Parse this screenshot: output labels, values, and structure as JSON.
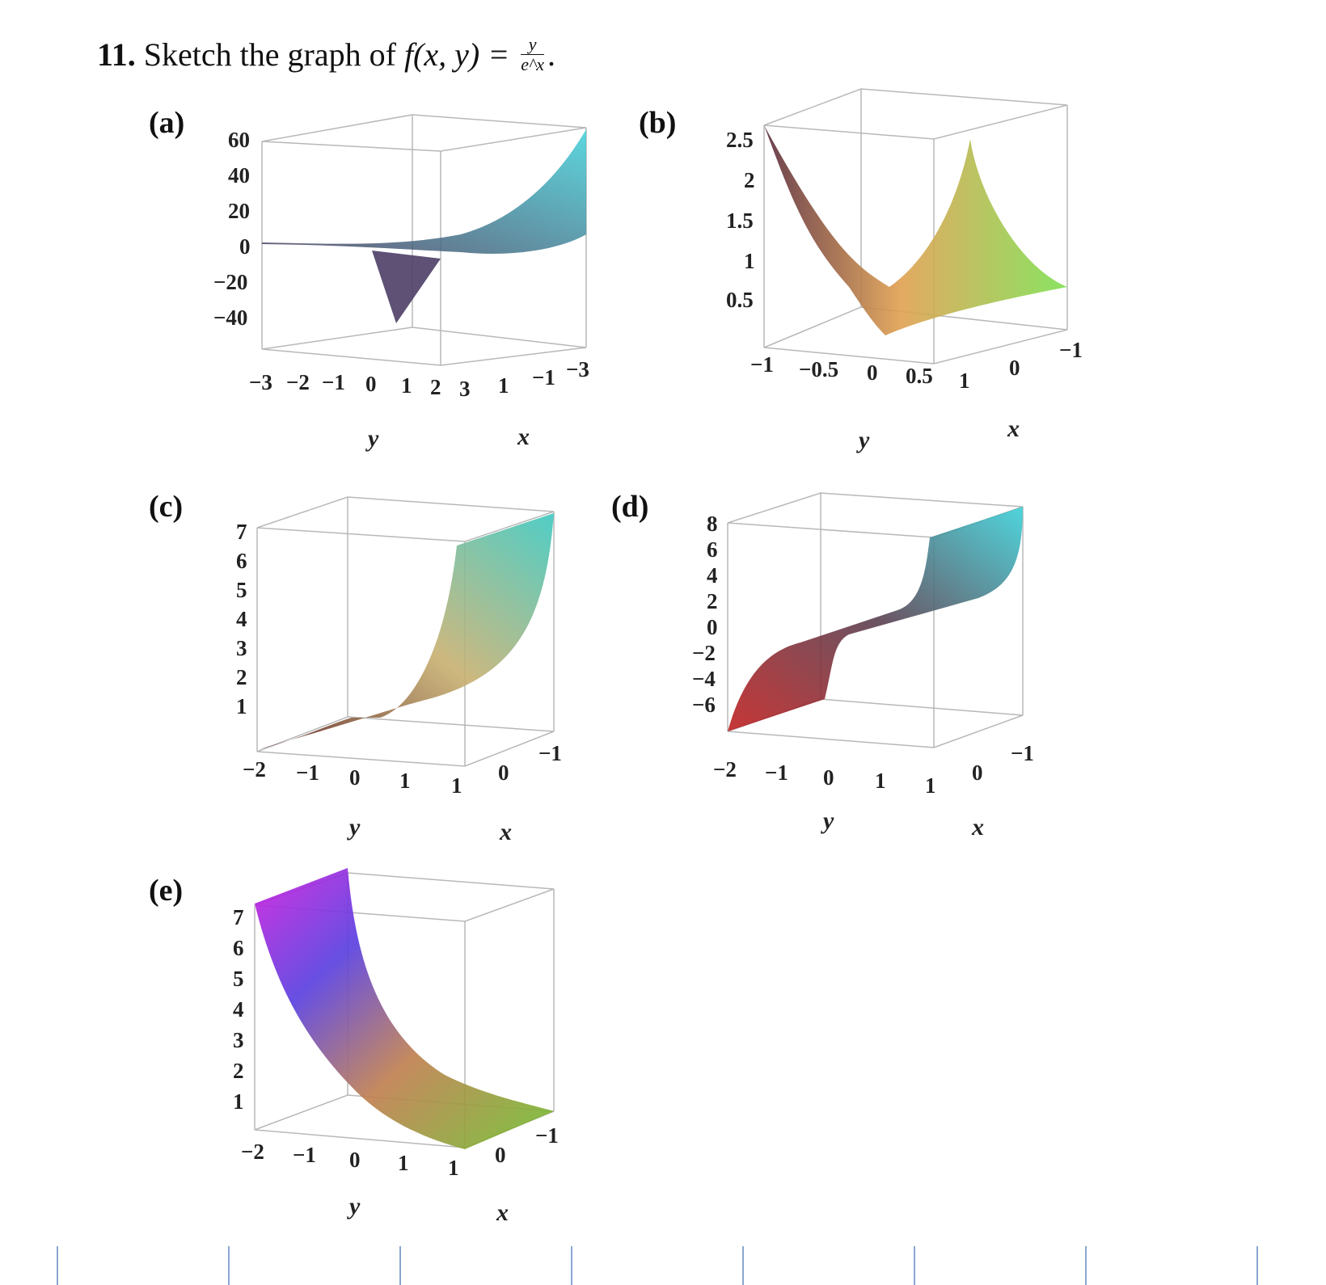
{
  "question": {
    "number": "11.",
    "text": "Sketch the graph of",
    "fn": "f(x, y) =",
    "numerator": "y",
    "denominator": "e^x",
    "end": "."
  },
  "panels": [
    {
      "label": "(a)",
      "z_ticks": [
        "60",
        "40",
        "20",
        "0",
        "−20",
        "−40"
      ],
      "y_ticks": [
        "−3",
        "−2",
        "−1",
        "0",
        "1",
        "2",
        "3"
      ],
      "x_ticks": [
        "1",
        "−1",
        "−3"
      ],
      "y_label": "y",
      "x_label": "x"
    },
    {
      "label": "(b)",
      "z_ticks": [
        "2.5",
        "2",
        "1.5",
        "1",
        "0.5"
      ],
      "y_ticks": [
        "−1",
        "−0.5",
        "0",
        "0.5",
        "1"
      ],
      "x_ticks": [
        "0",
        "−1"
      ],
      "y_label": "y",
      "x_label": "x"
    },
    {
      "label": "(c)",
      "z_ticks": [
        "7",
        "6",
        "5",
        "4",
        "3",
        "2",
        "1"
      ],
      "y_ticks": [
        "−2",
        "−1",
        "0",
        "1",
        "1"
      ],
      "x_ticks": [
        "0",
        "−1"
      ],
      "y_label": "y",
      "x_label": "x"
    },
    {
      "label": "(d)",
      "z_ticks": [
        "8",
        "6",
        "4",
        "2",
        "0",
        "−2",
        "−4",
        "−6"
      ],
      "y_ticks": [
        "−2",
        "−1",
        "0",
        "1",
        "1"
      ],
      "x_ticks": [
        "0",
        "−1"
      ],
      "y_label": "y",
      "x_label": "x"
    },
    {
      "label": "(e)",
      "z_ticks": [
        "7",
        "6",
        "5",
        "4",
        "3",
        "2",
        "1"
      ],
      "y_ticks": [
        "−2",
        "−1",
        "0",
        "1",
        "1"
      ],
      "x_ticks": [
        "0",
        "−1"
      ],
      "y_label": "y",
      "x_label": "x"
    }
  ],
  "colors": {
    "a_surface": [
      "#4a3b5c",
      "#3fd0d8"
    ],
    "b_surface": [
      "#5a2b3a",
      "#e0a050",
      "#7de050"
    ],
    "c_surface": [
      "#5a2020",
      "#c8b070",
      "#3cc8c0"
    ],
    "d_surface": [
      "#c02020",
      "#5a4050",
      "#3cd0d8"
    ],
    "e_surface": [
      "#d020e0",
      "#5a40e0",
      "#c08050",
      "#70c030"
    ]
  }
}
